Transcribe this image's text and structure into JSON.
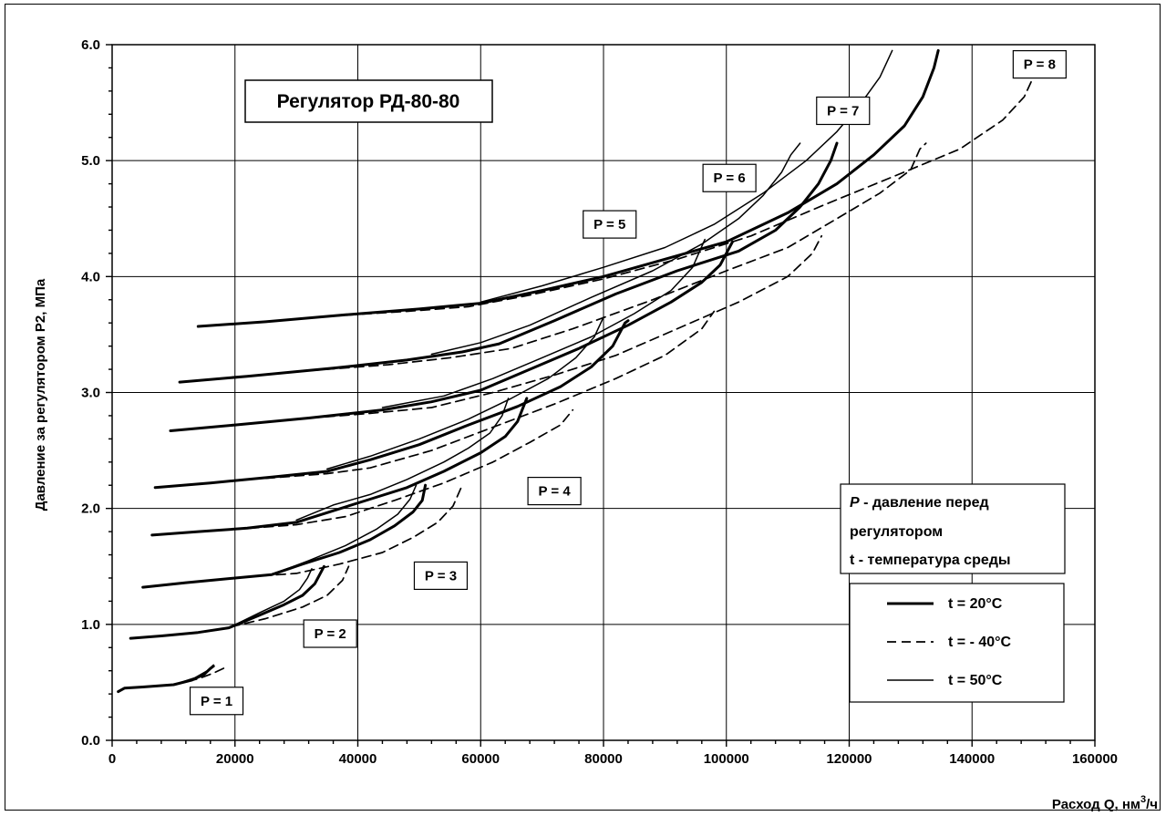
{
  "chart_data": {
    "type": "line",
    "title": "Регулятор РД-80-80",
    "xlabel": "Расход Q, нм³/ч",
    "xlabel_main": "Расход Q, нм",
    "xlabel_sup": "3",
    "xlabel_tail": "/ч",
    "ylabel": "Давление за регулятором Р2, МПа",
    "xlim": [
      0,
      160000
    ],
    "ylim": [
      0,
      6
    ],
    "x_ticks": [
      "0",
      "20000",
      "40000",
      "60000",
      "80000",
      "100000",
      "120000",
      "140000",
      "160000"
    ],
    "y_ticks": [
      "0.0",
      "1.0",
      "2.0",
      "3.0",
      "4.0",
      "5.0",
      "6.0"
    ],
    "grid": true,
    "note": {
      "line1_symbol": "P",
      "line1_text": " - давление перед",
      "line2": "регулятором",
      "line3": "t - температура среды"
    },
    "legend": [
      {
        "label": "t = 20°C",
        "style": "thick"
      },
      {
        "label": "t = - 40°C",
        "style": "dashed"
      },
      {
        "label": "t = 50°C",
        "style": "thin"
      }
    ],
    "curve_labels": [
      {
        "text": "P = 1",
        "x": 17000,
        "y": 0.34
      },
      {
        "text": "P = 2",
        "x": 35500,
        "y": 0.92
      },
      {
        "text": "P = 3",
        "x": 53500,
        "y": 1.42
      },
      {
        "text": "P = 4",
        "x": 72000,
        "y": 2.15
      },
      {
        "text": "P = 5",
        "x": 81000,
        "y": 4.45
      },
      {
        "text": "P = 6",
        "x": 100500,
        "y": 4.85
      },
      {
        "text": "P = 7",
        "x": 119000,
        "y": 5.43
      },
      {
        "text": "P = 8",
        "x": 151000,
        "y": 5.83
      }
    ],
    "series": [
      {
        "group": "P = 1",
        "style": "thick",
        "points": [
          [
            1000,
            0.42
          ],
          [
            2000,
            0.45
          ],
          [
            5000,
            0.46
          ],
          [
            10000,
            0.48
          ],
          [
            13000,
            0.52
          ],
          [
            15000,
            0.57
          ],
          [
            16000,
            0.62
          ],
          [
            16500,
            0.64
          ]
        ]
      },
      {
        "group": "P = 1",
        "style": "thin",
        "points": [
          [
            10000,
            0.48
          ],
          [
            13500,
            0.54
          ],
          [
            15500,
            0.6
          ],
          [
            16500,
            0.65
          ]
        ]
      },
      {
        "group": "P = 1",
        "style": "dashed",
        "points": [
          [
            10000,
            0.48
          ],
          [
            14000,
            0.53
          ],
          [
            16500,
            0.58
          ],
          [
            18500,
            0.63
          ]
        ]
      },
      {
        "group": "P = 2",
        "style": "thick",
        "points": [
          [
            3000,
            0.88
          ],
          [
            8000,
            0.9
          ],
          [
            14000,
            0.93
          ],
          [
            19000,
            0.97
          ],
          [
            24000,
            1.08
          ],
          [
            28000,
            1.17
          ],
          [
            31000,
            1.25
          ],
          [
            33000,
            1.35
          ],
          [
            34000,
            1.45
          ],
          [
            34500,
            1.5
          ]
        ]
      },
      {
        "group": "P = 2",
        "style": "thin",
        "points": [
          [
            19000,
            0.97
          ],
          [
            24000,
            1.1
          ],
          [
            28000,
            1.2
          ],
          [
            30500,
            1.3
          ],
          [
            31800,
            1.4
          ],
          [
            32500,
            1.48
          ]
        ]
      },
      {
        "group": "P = 2",
        "style": "dashed",
        "points": [
          [
            17000,
            0.95
          ],
          [
            25000,
            1.05
          ],
          [
            31000,
            1.15
          ],
          [
            35000,
            1.25
          ],
          [
            37500,
            1.38
          ],
          [
            38500,
            1.5
          ]
        ]
      },
      {
        "group": "P = 3",
        "style": "thick",
        "points": [
          [
            5000,
            1.32
          ],
          [
            12000,
            1.36
          ],
          [
            20000,
            1.4
          ],
          [
            26000,
            1.43
          ],
          [
            31000,
            1.52
          ],
          [
            37000,
            1.62
          ],
          [
            42000,
            1.73
          ],
          [
            46000,
            1.85
          ],
          [
            49000,
            1.97
          ],
          [
            50500,
            2.07
          ],
          [
            51000,
            2.2
          ]
        ]
      },
      {
        "group": "P = 3",
        "style": "thin",
        "points": [
          [
            26000,
            1.43
          ],
          [
            32000,
            1.55
          ],
          [
            38000,
            1.68
          ],
          [
            43000,
            1.82
          ],
          [
            46500,
            1.95
          ],
          [
            48500,
            2.08
          ],
          [
            49500,
            2.2
          ]
        ]
      },
      {
        "group": "P = 3",
        "style": "dashed",
        "points": [
          [
            22000,
            1.41
          ],
          [
            30000,
            1.44
          ],
          [
            37000,
            1.52
          ],
          [
            44000,
            1.62
          ],
          [
            49000,
            1.75
          ],
          [
            53000,
            1.88
          ],
          [
            55500,
            2.02
          ],
          [
            57000,
            2.2
          ]
        ]
      },
      {
        "group": "P = 4",
        "style": "thick",
        "points": [
          [
            6500,
            1.77
          ],
          [
            14000,
            1.8
          ],
          [
            22000,
            1.83
          ],
          [
            30000,
            1.88
          ],
          [
            36000,
            1.98
          ],
          [
            42000,
            2.08
          ],
          [
            48000,
            2.18
          ],
          [
            54000,
            2.32
          ],
          [
            60000,
            2.48
          ],
          [
            64000,
            2.62
          ],
          [
            66000,
            2.75
          ],
          [
            67500,
            2.95
          ]
        ]
      },
      {
        "group": "P = 4",
        "style": "thin",
        "points": [
          [
            30000,
            1.9
          ],
          [
            36000,
            2.03
          ],
          [
            42000,
            2.12
          ],
          [
            48000,
            2.25
          ],
          [
            54000,
            2.4
          ],
          [
            58000,
            2.52
          ],
          [
            61500,
            2.65
          ],
          [
            63500,
            2.8
          ],
          [
            64500,
            2.95
          ]
        ]
      },
      {
        "group": "P = 4",
        "style": "dashed",
        "points": [
          [
            20000,
            1.82
          ],
          [
            30000,
            1.86
          ],
          [
            38000,
            1.93
          ],
          [
            46000,
            2.07
          ],
          [
            54000,
            2.22
          ],
          [
            62000,
            2.4
          ],
          [
            68000,
            2.57
          ],
          [
            73000,
            2.72
          ],
          [
            75000,
            2.85
          ]
        ]
      },
      {
        "group": "P = 5",
        "style": "thick",
        "points": [
          [
            7000,
            2.18
          ],
          [
            16000,
            2.22
          ],
          [
            26000,
            2.27
          ],
          [
            35000,
            2.32
          ],
          [
            42000,
            2.42
          ],
          [
            50000,
            2.55
          ],
          [
            58000,
            2.72
          ],
          [
            66000,
            2.88
          ],
          [
            73000,
            3.05
          ],
          [
            78000,
            3.22
          ],
          [
            81500,
            3.4
          ],
          [
            83500,
            3.6
          ],
          [
            84000,
            3.62
          ]
        ]
      },
      {
        "group": "P = 5",
        "style": "thin",
        "points": [
          [
            35000,
            2.34
          ],
          [
            42000,
            2.45
          ],
          [
            50000,
            2.6
          ],
          [
            58000,
            2.77
          ],
          [
            65000,
            2.95
          ],
          [
            71000,
            3.12
          ],
          [
            75500,
            3.3
          ],
          [
            78500,
            3.48
          ],
          [
            80000,
            3.65
          ]
        ]
      },
      {
        "group": "P = 5",
        "style": "dashed",
        "points": [
          [
            25000,
            2.26
          ],
          [
            35000,
            2.3
          ],
          [
            42000,
            2.35
          ],
          [
            52000,
            2.5
          ],
          [
            62000,
            2.7
          ],
          [
            72000,
            2.9
          ],
          [
            82000,
            3.12
          ],
          [
            90000,
            3.32
          ],
          [
            96000,
            3.55
          ],
          [
            98000,
            3.7
          ]
        ]
      },
      {
        "group": "P = 6",
        "style": "thick",
        "points": [
          [
            9500,
            2.67
          ],
          [
            20000,
            2.72
          ],
          [
            32000,
            2.78
          ],
          [
            44000,
            2.85
          ],
          [
            52000,
            2.92
          ],
          [
            60000,
            3.02
          ],
          [
            68000,
            3.2
          ],
          [
            76000,
            3.38
          ],
          [
            84000,
            3.58
          ],
          [
            91000,
            3.78
          ],
          [
            96000,
            3.95
          ],
          [
            99000,
            4.1
          ],
          [
            101000,
            4.3
          ]
        ]
      },
      {
        "group": "P = 6",
        "style": "thin",
        "points": [
          [
            44000,
            2.87
          ],
          [
            54000,
            2.97
          ],
          [
            62000,
            3.12
          ],
          [
            70000,
            3.3
          ],
          [
            78000,
            3.48
          ],
          [
            85000,
            3.68
          ],
          [
            91000,
            3.88
          ],
          [
            94500,
            4.08
          ],
          [
            96500,
            4.32
          ]
        ]
      },
      {
        "group": "P = 6",
        "style": "dashed",
        "points": [
          [
            30000,
            2.77
          ],
          [
            42000,
            2.82
          ],
          [
            52000,
            2.87
          ],
          [
            62000,
            3.0
          ],
          [
            72000,
            3.15
          ],
          [
            82000,
            3.32
          ],
          [
            92000,
            3.55
          ],
          [
            102000,
            3.78
          ],
          [
            110000,
            4.0
          ],
          [
            114000,
            4.2
          ],
          [
            115500,
            4.35
          ]
        ]
      },
      {
        "group": "P = 7",
        "style": "thick",
        "points": [
          [
            11000,
            3.09
          ],
          [
            22000,
            3.14
          ],
          [
            36000,
            3.21
          ],
          [
            48000,
            3.28
          ],
          [
            57000,
            3.35
          ],
          [
            63000,
            3.42
          ],
          [
            72000,
            3.62
          ],
          [
            82000,
            3.85
          ],
          [
            92000,
            4.05
          ],
          [
            102000,
            4.22
          ],
          [
            108000,
            4.4
          ],
          [
            112000,
            4.6
          ],
          [
            115000,
            4.8
          ],
          [
            117000,
            5.0
          ],
          [
            118000,
            5.15
          ]
        ]
      },
      {
        "group": "P = 7",
        "style": "thin",
        "points": [
          [
            52000,
            3.33
          ],
          [
            60000,
            3.43
          ],
          [
            68000,
            3.58
          ],
          [
            78000,
            3.82
          ],
          [
            88000,
            4.05
          ],
          [
            96000,
            4.28
          ],
          [
            102000,
            4.5
          ],
          [
            106000,
            4.7
          ],
          [
            109000,
            4.9
          ],
          [
            110500,
            5.05
          ],
          [
            112000,
            5.15
          ]
        ]
      },
      {
        "group": "P = 7",
        "style": "dashed",
        "points": [
          [
            30000,
            3.18
          ],
          [
            45000,
            3.24
          ],
          [
            55000,
            3.3
          ],
          [
            65000,
            3.38
          ],
          [
            75000,
            3.55
          ],
          [
            88000,
            3.8
          ],
          [
            100000,
            4.05
          ],
          [
            110000,
            4.25
          ],
          [
            118000,
            4.5
          ],
          [
            125000,
            4.72
          ],
          [
            130000,
            4.92
          ],
          [
            131500,
            5.1
          ],
          [
            132500,
            5.15
          ]
        ]
      },
      {
        "group": "P = 8",
        "style": "thick",
        "points": [
          [
            14000,
            3.57
          ],
          [
            25000,
            3.61
          ],
          [
            38000,
            3.67
          ],
          [
            50000,
            3.72
          ],
          [
            60000,
            3.77
          ],
          [
            70000,
            3.88
          ],
          [
            80000,
            4.0
          ],
          [
            90000,
            4.15
          ],
          [
            100000,
            4.3
          ],
          [
            110000,
            4.55
          ],
          [
            118000,
            4.8
          ],
          [
            124000,
            5.05
          ],
          [
            129000,
            5.3
          ],
          [
            132000,
            5.55
          ],
          [
            133800,
            5.8
          ],
          [
            134500,
            5.95
          ]
        ]
      },
      {
        "group": "P = 8",
        "style": "thin",
        "points": [
          [
            60000,
            3.78
          ],
          [
            70000,
            3.92
          ],
          [
            80000,
            4.08
          ],
          [
            90000,
            4.25
          ],
          [
            98000,
            4.45
          ],
          [
            106000,
            4.72
          ],
          [
            113000,
            5.0
          ],
          [
            118000,
            5.25
          ],
          [
            122000,
            5.5
          ],
          [
            125000,
            5.72
          ],
          [
            127000,
            5.95
          ]
        ]
      },
      {
        "group": "P = 8",
        "style": "dashed",
        "points": [
          [
            36000,
            3.66
          ],
          [
            48000,
            3.7
          ],
          [
            58000,
            3.74
          ],
          [
            68000,
            3.84
          ],
          [
            80000,
            3.98
          ],
          [
            92000,
            4.15
          ],
          [
            104000,
            4.35
          ],
          [
            116000,
            4.62
          ],
          [
            128000,
            4.88
          ],
          [
            138000,
            5.1
          ],
          [
            145000,
            5.35
          ],
          [
            148500,
            5.55
          ],
          [
            150500,
            5.78
          ],
          [
            151500,
            5.95
          ]
        ]
      }
    ]
  }
}
